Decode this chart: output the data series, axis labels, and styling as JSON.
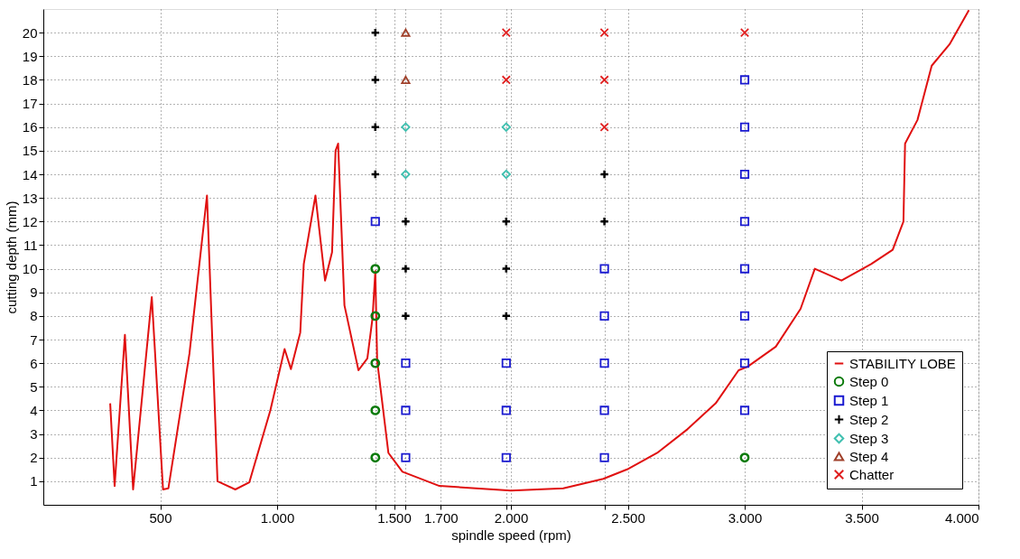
{
  "chart_data": {
    "type": "scatter",
    "xlabel": "spindle speed (rpm)",
    "ylabel": "cutting depth (mm)",
    "xlim": [
      0,
      4000
    ],
    "ylim": [
      0,
      21
    ],
    "xticks": [
      {
        "value": 500,
        "label": "500"
      },
      {
        "value": 1000,
        "label": "1.000"
      },
      {
        "value": 1420,
        "label": null
      },
      {
        "value": 1500,
        "label": "1.500"
      },
      {
        "value": 1550,
        "label": null
      },
      {
        "value": 1700,
        "label": "1.700"
      },
      {
        "value": 1980,
        "label": null
      },
      {
        "value": 2000,
        "label": "2.000"
      },
      {
        "value": 2400,
        "label": null
      },
      {
        "value": 2500,
        "label": "2.500"
      },
      {
        "value": 3000,
        "label": "3.000"
      },
      {
        "value": 3500,
        "label": "3.500"
      },
      {
        "value": 4000,
        "label": "4.000"
      }
    ],
    "yticks": [
      1,
      2,
      3,
      4,
      5,
      6,
      7,
      8,
      9,
      10,
      11,
      12,
      13,
      14,
      15,
      16,
      17,
      18,
      19,
      20
    ],
    "grid": true,
    "legend": "bottom right",
    "series": [
      {
        "name": "STABILITY LOBE",
        "type": "line",
        "line_style": "solid",
        "marker": "none",
        "color": "#e01010",
        "x": [
          286,
          305,
          349,
          384,
          464,
          512,
          535,
          625,
          700,
          745,
          821,
          881,
          971,
          1032,
          1059,
          1099,
          1114,
          1164,
          1205,
          1235,
          1250,
          1261,
          1288,
          1348,
          1386,
          1408,
          1420,
          1428,
          1476,
          1536,
          1694,
          2000,
          2224,
          2395,
          2497,
          2626,
          2755,
          2876,
          2974,
          3012,
          3133,
          3239,
          3300,
          3414,
          3541,
          3633,
          3679,
          3686,
          3739,
          3800,
          3876,
          3959
        ],
        "values": [
          4.3,
          0.8,
          7.2,
          0.65,
          8.8,
          0.65,
          0.7,
          6.4,
          13.1,
          1.0,
          0.65,
          0.95,
          4.0,
          6.6,
          5.75,
          7.3,
          10.2,
          13.1,
          9.5,
          10.7,
          15.0,
          15.3,
          8.45,
          5.7,
          6.2,
          7.9,
          9.9,
          6.1,
          2.2,
          1.4,
          0.8,
          0.6,
          0.7,
          1.1,
          1.5,
          2.2,
          3.2,
          4.3,
          5.7,
          5.85,
          6.7,
          8.3,
          10.0,
          9.5,
          10.2,
          10.8,
          12.0,
          15.3,
          16.3,
          18.6,
          19.5,
          20.95
        ]
      },
      {
        "name": "Step 0",
        "marker": "circle",
        "color": "#0a7a0a",
        "x": [
          1420,
          1420,
          1420,
          1420,
          1420,
          3000
        ],
        "values": [
          2,
          4,
          6,
          8,
          10,
          2
        ]
      },
      {
        "name": "Step 1",
        "marker": "square",
        "color": "#1a1ad0",
        "x": [
          1420,
          1550,
          1550,
          1550,
          1980,
          1980,
          1980,
          2400,
          2400,
          2400,
          2400,
          2400,
          3000,
          3000,
          3000,
          3000,
          3000,
          3000,
          3000,
          3000
        ],
        "values": [
          12,
          2,
          4,
          6,
          2,
          4,
          6,
          2,
          4,
          6,
          8,
          10,
          4,
          6,
          8,
          10,
          12,
          14,
          16,
          18
        ]
      },
      {
        "name": "Step 2",
        "marker": "plus",
        "color": "#000000",
        "x": [
          1420,
          1420,
          1420,
          1420,
          1550,
          1550,
          1550,
          1980,
          1980,
          1980,
          2400,
          2400
        ],
        "values": [
          14,
          16,
          18,
          20,
          8,
          10,
          12,
          8,
          10,
          12,
          12,
          14
        ]
      },
      {
        "name": "Step 3",
        "marker": "diamond",
        "color": "#40c0b0",
        "x": [
          1550,
          1550,
          1980,
          1980
        ],
        "values": [
          14,
          16,
          14,
          16
        ]
      },
      {
        "name": "Step 4",
        "marker": "triangle",
        "color": "#a0402a",
        "x": [
          1550,
          1550
        ],
        "values": [
          18,
          20
        ]
      },
      {
        "name": "Chatter",
        "marker": "cross",
        "color": "#e02020",
        "x": [
          1980,
          1980,
          2400,
          2400,
          2400,
          3000
        ],
        "values": [
          18,
          20,
          16,
          18,
          20,
          20
        ]
      }
    ]
  }
}
